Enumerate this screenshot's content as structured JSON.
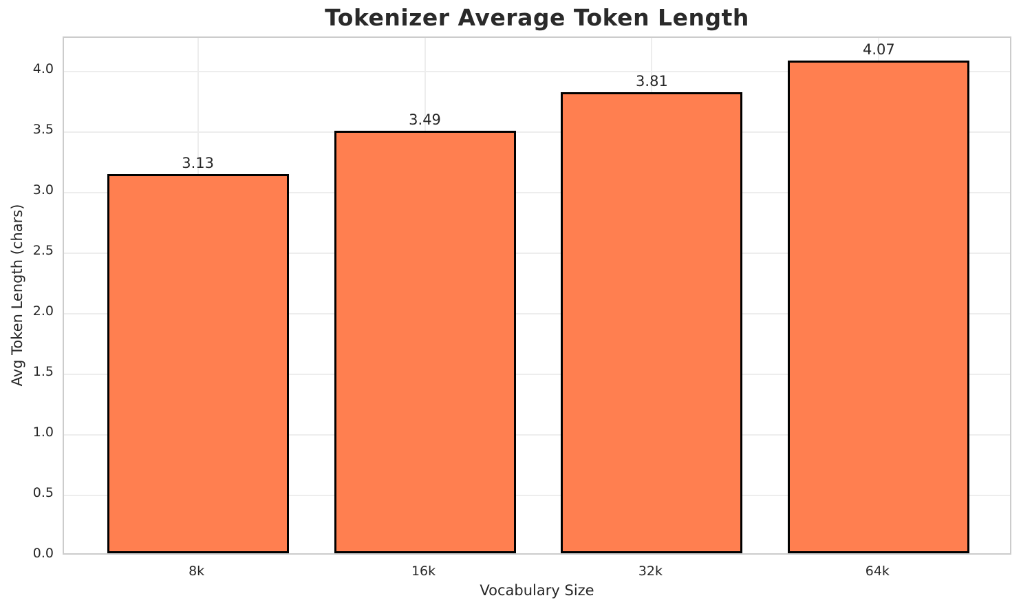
{
  "chart_data": {
    "type": "bar",
    "title": "Tokenizer Average Token Length",
    "xlabel": "Vocabulary Size",
    "ylabel": "Avg Token Length (chars)",
    "categories": [
      "8k",
      "16k",
      "32k",
      "64k"
    ],
    "values": [
      3.13,
      3.49,
      3.81,
      4.07
    ],
    "value_labels": [
      "3.13",
      "3.49",
      "3.81",
      "4.07"
    ],
    "yticks": [
      0.0,
      0.5,
      1.0,
      1.5,
      2.0,
      2.5,
      3.0,
      3.5,
      4.0
    ],
    "ytick_labels": [
      "0.0",
      "0.5",
      "1.0",
      "1.5",
      "2.0",
      "2.5",
      "3.0",
      "3.5",
      "4.0"
    ],
    "ylim": [
      0,
      4.28
    ],
    "grid": true,
    "legend_position": "none",
    "colors": {
      "bar_fill": "#FF7F50",
      "bar_edge": "#000000",
      "grid": "#ededed",
      "spine": "#cccccc",
      "text": "#262626",
      "title_text": "#2a2a2a",
      "background": "#ffffff"
    }
  }
}
